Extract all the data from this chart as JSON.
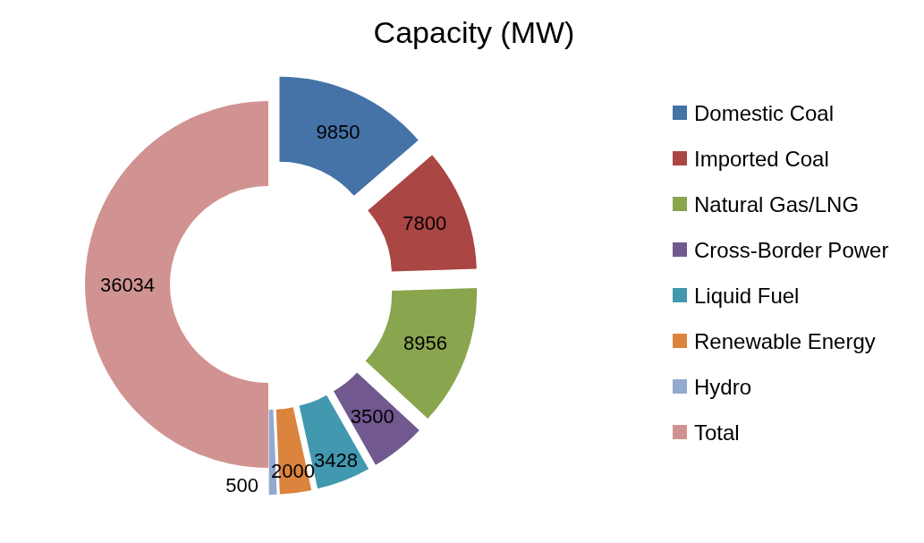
{
  "chart_data": {
    "type": "donut",
    "title": "Capacity (MW)",
    "categories": [
      "Domestic Coal",
      "Imported Coal",
      "Natural Gas/LNG",
      "Cross-Border Power",
      "Liquid Fuel",
      "Renewable Energy",
      "Hydro",
      "Total"
    ],
    "values": [
      9850,
      7800,
      8956,
      3500,
      3428,
      2000,
      500,
      36034
    ],
    "colors": [
      "#4572a7",
      "#aa4643",
      "#89a54e",
      "#71588f",
      "#4198af",
      "#db843d",
      "#93a9cf",
      "#d19392"
    ],
    "data_labels": true,
    "legend": "right"
  }
}
